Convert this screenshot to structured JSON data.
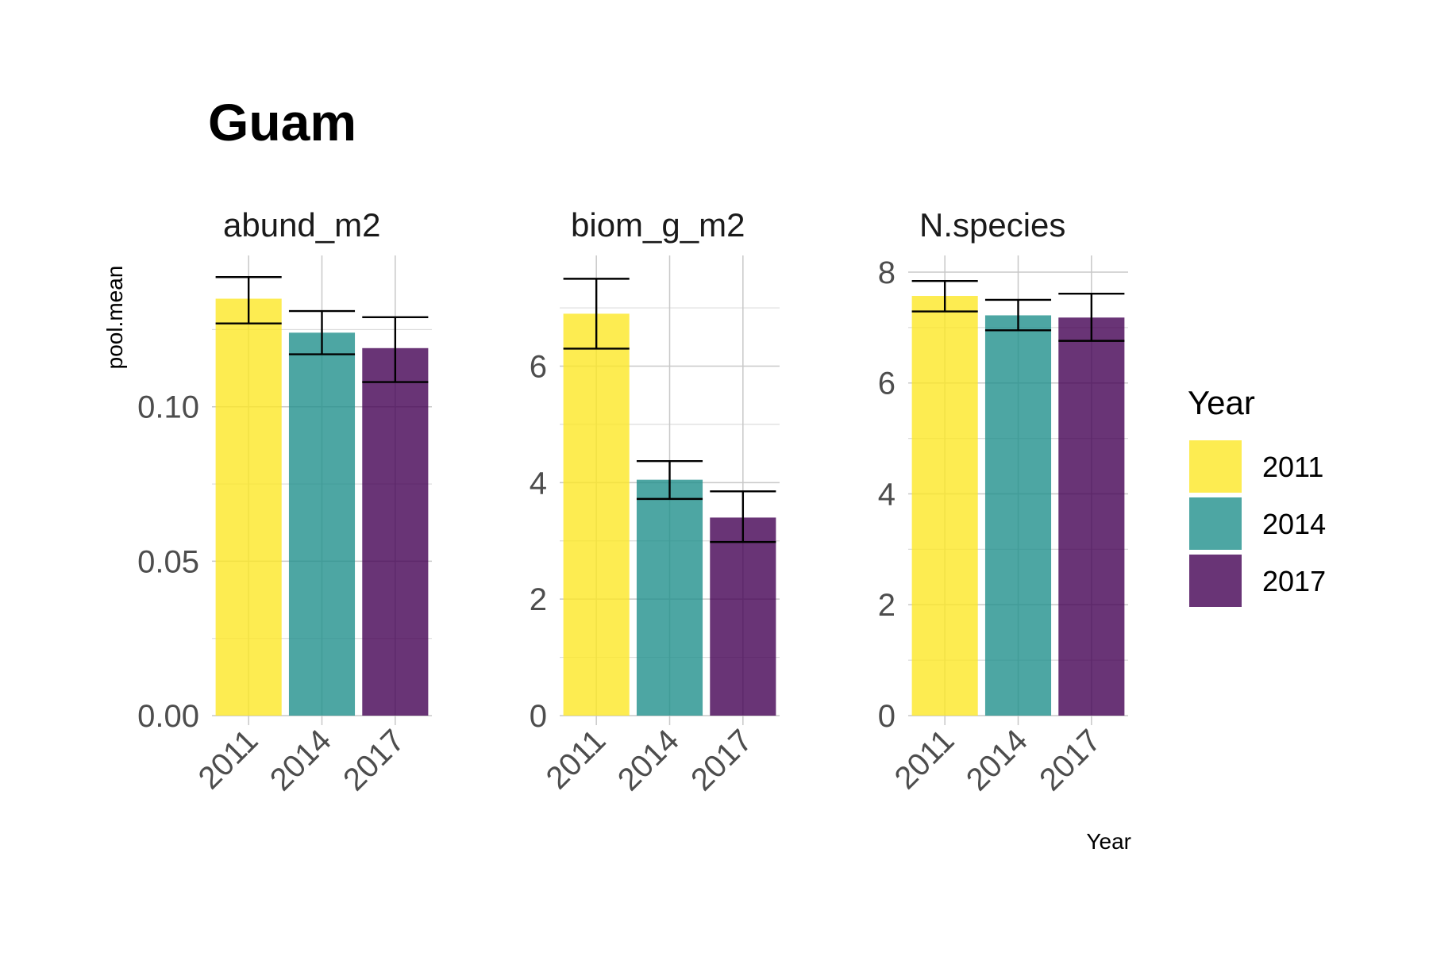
{
  "chart_data": {
    "type": "bar",
    "title": "Guam",
    "ylabel": "pool.mean",
    "xlabel": "Year",
    "legend": {
      "title": "Year",
      "position": "right",
      "entries": [
        {
          "label": "2011",
          "color": "#FDE725"
        },
        {
          "label": "2014",
          "color": "#21908C"
        },
        {
          "label": "2017",
          "color": "#440154"
        }
      ]
    },
    "bar_opacity": 0.8,
    "categories": [
      "2011",
      "2014",
      "2017"
    ],
    "panels": [
      {
        "name": "abund_m2",
        "ylim": [
          0,
          0.149
        ],
        "yticks": [
          0,
          0.05,
          0.1
        ],
        "ytick_labels": [
          "0.00",
          "0.05",
          "0.10"
        ],
        "yminor": [
          0.025,
          0.075,
          0.125
        ],
        "values": [
          0.135,
          0.124,
          0.119
        ],
        "err_low": [
          0.127,
          0.117,
          0.108
        ],
        "err_high": [
          0.142,
          0.131,
          0.129
        ]
      },
      {
        "name": "biom_g_m2",
        "ylim": [
          0,
          7.9
        ],
        "yticks": [
          0,
          2,
          4,
          6
        ],
        "ytick_labels": [
          "0",
          "2",
          "4",
          "6"
        ],
        "yminor": [
          1,
          3,
          5,
          7
        ],
        "values": [
          6.9,
          4.05,
          3.4
        ],
        "err_low": [
          6.3,
          3.72,
          2.98
        ],
        "err_high": [
          7.5,
          4.37,
          3.85
        ]
      },
      {
        "name": "N.species",
        "ylim": [
          0,
          8.3
        ],
        "yticks": [
          0,
          2,
          4,
          6,
          8
        ],
        "ytick_labels": [
          "0",
          "2",
          "4",
          "6",
          "8"
        ],
        "yminor": [
          1,
          3,
          5,
          7
        ],
        "values": [
          7.57,
          7.22,
          7.18
        ],
        "err_low": [
          7.29,
          6.95,
          6.76
        ],
        "err_high": [
          7.84,
          7.5,
          7.61
        ]
      }
    ]
  }
}
